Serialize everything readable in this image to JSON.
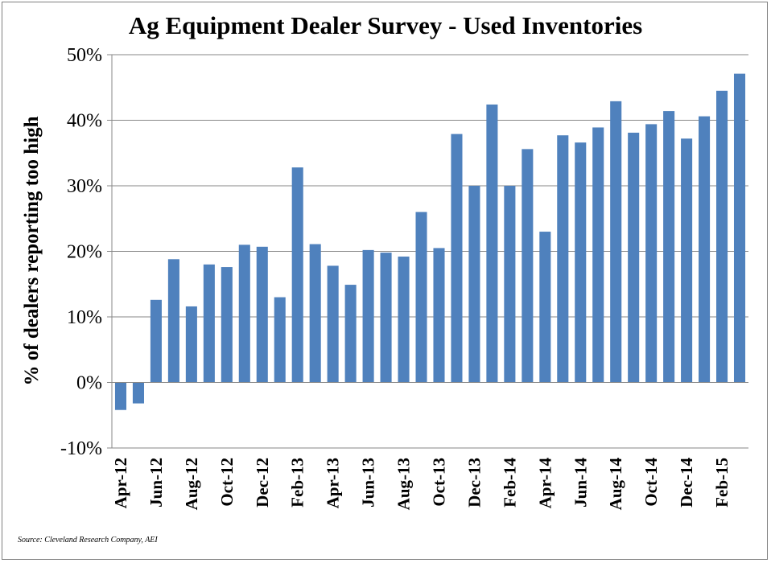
{
  "chart_data": {
    "type": "bar",
    "title": "Ag Equipment Dealer Survey - Used Inventories",
    "ylabel": "% of dealers reporting too high",
    "xlabel": "",
    "source": "Source: Cleveland Research Company, AEI",
    "ylim": [
      -10,
      50
    ],
    "y_ticks": [
      "-10%",
      "0%",
      "10%",
      "20%",
      "30%",
      "40%",
      "50%"
    ],
    "y_tick_values": [
      -10,
      0,
      10,
      20,
      30,
      40,
      50
    ],
    "x_tick_labels": [
      "Apr-12",
      "Jun-12",
      "Aug-12",
      "Oct-12",
      "Dec-12",
      "Feb-13",
      "Apr-13",
      "Jun-13",
      "Aug-13",
      "Oct-13",
      "Dec-13",
      "Feb-14",
      "Apr-14",
      "Jun-14",
      "Aug-14",
      "Oct-14",
      "Dec-14",
      "Feb-15"
    ],
    "x_tick_bar_index": [
      0,
      2,
      4,
      6,
      8,
      10,
      12,
      14,
      16,
      18,
      20,
      22,
      24,
      26,
      28,
      30,
      32,
      34
    ],
    "values": [
      -4.2,
      -3.2,
      12.6,
      18.8,
      11.6,
      18.0,
      17.6,
      21.0,
      20.7,
      13.0,
      32.8,
      21.1,
      17.8,
      14.9,
      20.2,
      19.8,
      19.2,
      26.0,
      20.5,
      37.9,
      30.0,
      42.4,
      30.0,
      35.6,
      23.0,
      37.7,
      36.6,
      38.9,
      42.9,
      38.1,
      39.4,
      41.4,
      37.2,
      40.6,
      44.5,
      47.1
    ],
    "bar_color": "#4f81bd",
    "grid": true,
    "legend": "none"
  }
}
